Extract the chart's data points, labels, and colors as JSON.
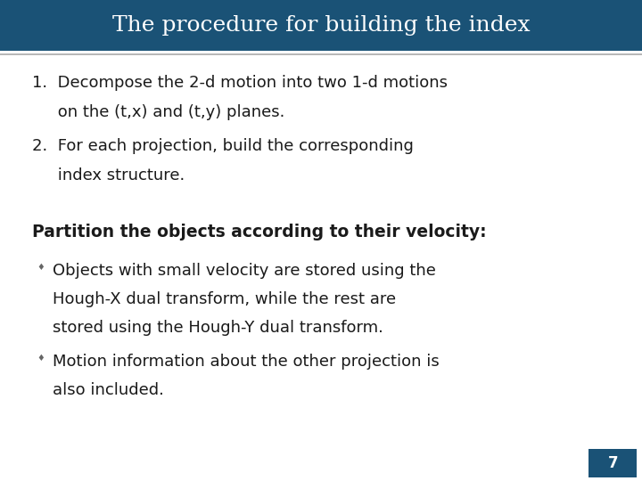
{
  "title": "The procedure for building the index",
  "title_bg_color": "#1A5276",
  "title_text_color": "#FFFFFF",
  "slide_bg_color": "#FFFFFF",
  "separator_color": "#AAAAAA",
  "page_number": "7",
  "page_number_bg": "#1A5276",
  "page_number_color": "#FFFFFF",
  "numbered_item1_line1": "1.  Decompose the 2-d motion into two 1-d motions",
  "numbered_item1_line2": "     on the (t,x) and (t,y) planes.",
  "numbered_item2_line1": "2.  For each projection, build the corresponding",
  "numbered_item2_line2": "     index structure.",
  "section_title": "Partition the objects according to their velocity:",
  "bullet1_line1": "Objects with small velocity are stored using the",
  "bullet1_line2": "Hough-X dual transform, while the rest are",
  "bullet1_line3": "stored using the Hough-Y dual transform.",
  "bullet2_line1": "Motion information about the other projection is",
  "bullet2_line2": "also included.",
  "title_fontsize": 18,
  "body_fontsize": 13,
  "section_fontsize": 13.5,
  "text_color": "#1a1a1a",
  "bullet_color": "#666666"
}
